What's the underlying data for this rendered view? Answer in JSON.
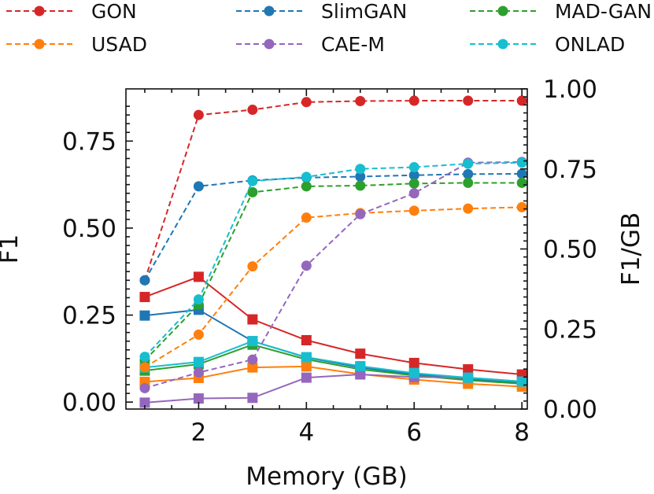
{
  "chart_data": {
    "type": "line",
    "title": "",
    "xlabel": "Memory (GB)",
    "ylabel_left": "F1",
    "ylabel_right": "F1/GB",
    "x": [
      1,
      2,
      3,
      4,
      5,
      6,
      7,
      8
    ],
    "xlim": [
      0.65,
      8.1
    ],
    "ylim_left": [
      -0.02,
      0.9
    ],
    "ylim_right": [
      0.0,
      1.0
    ],
    "xticks": [
      2,
      4,
      6,
      8
    ],
    "yticks_left": [
      0.0,
      0.25,
      0.5,
      0.75
    ],
    "yticks_right": [
      0.0,
      0.25,
      0.5,
      0.75,
      1.0
    ],
    "xtick_labels": [
      "2",
      "4",
      "6",
      "8"
    ],
    "ytick_labels_left": [
      "0.00",
      "0.25",
      "0.50",
      "0.75"
    ],
    "ytick_labels_right": [
      "0.00",
      "0.25",
      "0.50",
      "0.75",
      "1.00"
    ],
    "grid": false,
    "legend": {
      "placement": "top",
      "columns": 3
    },
    "series": [
      {
        "name": "GON",
        "color": "#d62728",
        "f1": [
          0.35,
          0.825,
          0.84,
          0.862,
          0.865,
          0.866,
          0.866,
          0.866
        ],
        "f1_per_gb": [
          0.35,
          0.413,
          0.28,
          0.215,
          0.173,
          0.144,
          0.124,
          0.108
        ]
      },
      {
        "name": "SlimGAN",
        "color": "#1f77b4",
        "f1": [
          0.35,
          0.62,
          0.637,
          0.645,
          0.648,
          0.652,
          0.655,
          0.656
        ],
        "f1_per_gb": [
          0.292,
          0.31,
          0.212,
          0.161,
          0.13,
          0.108,
          0.093,
          0.082
        ]
      },
      {
        "name": "MAD-GAN",
        "color": "#2ca02c",
        "f1": [
          0.12,
          0.28,
          0.603,
          0.62,
          0.622,
          0.628,
          0.63,
          0.63
        ],
        "f1_per_gb": [
          0.12,
          0.14,
          0.201,
          0.155,
          0.124,
          0.105,
          0.09,
          0.079
        ]
      },
      {
        "name": "USAD",
        "color": "#ff7f0e",
        "f1": [
          0.1,
          0.194,
          0.39,
          0.53,
          0.543,
          0.55,
          0.556,
          0.56
        ],
        "f1_per_gb": [
          0.085,
          0.097,
          0.13,
          0.133,
          0.109,
          0.092,
          0.079,
          0.07
        ]
      },
      {
        "name": "CAE-M",
        "color": "#9467bd",
        "f1": [
          0.04,
          0.085,
          0.122,
          0.392,
          0.54,
          0.6,
          0.688,
          0.69
        ],
        "f1_per_gb": [
          0.02,
          0.033,
          0.035,
          0.098,
          0.108,
          0.1,
          0.098,
          0.086
        ]
      },
      {
        "name": "ONLAD",
        "color": "#17becf",
        "f1": [
          0.13,
          0.295,
          0.635,
          0.647,
          0.67,
          0.675,
          0.685,
          0.688
        ],
        "f1_per_gb": [
          0.13,
          0.147,
          0.212,
          0.162,
          0.134,
          0.112,
          0.098,
          0.086
        ]
      }
    ]
  }
}
